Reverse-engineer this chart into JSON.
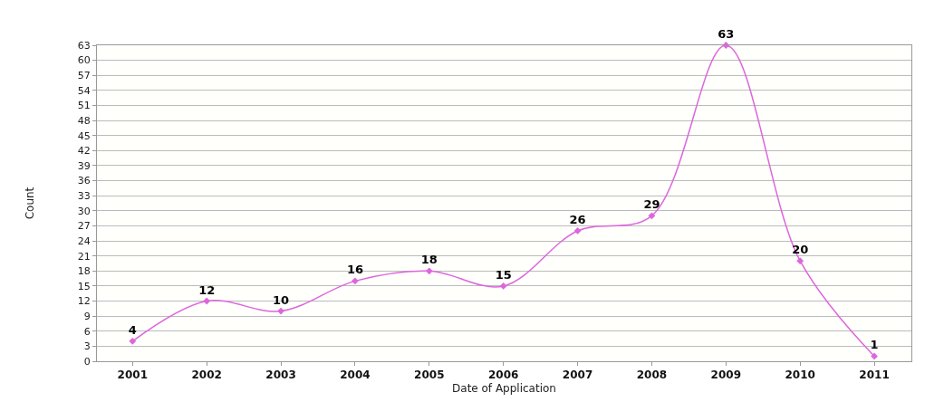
{
  "chart_data": {
    "type": "line",
    "xlabel": "Date of Application",
    "ylabel": "Count",
    "categories": [
      "2001",
      "2002",
      "2003",
      "2004",
      "2005",
      "2006",
      "2007",
      "2008",
      "2009",
      "2010",
      "2011"
    ],
    "series": [
      {
        "color": "#dd66dd",
        "values": [
          4,
          12,
          10,
          16,
          18,
          15,
          26,
          29,
          63,
          20,
          1
        ]
      }
    ],
    "ylim": [
      0,
      63
    ],
    "yticks": [
      0,
      3,
      6,
      9,
      12,
      15,
      18,
      21,
      24,
      27,
      30,
      33,
      36,
      39,
      42,
      45,
      48,
      51,
      54,
      57,
      60,
      63
    ],
    "grid": "y",
    "marker": "diamond",
    "line_style": "solid",
    "data_labels": true
  }
}
